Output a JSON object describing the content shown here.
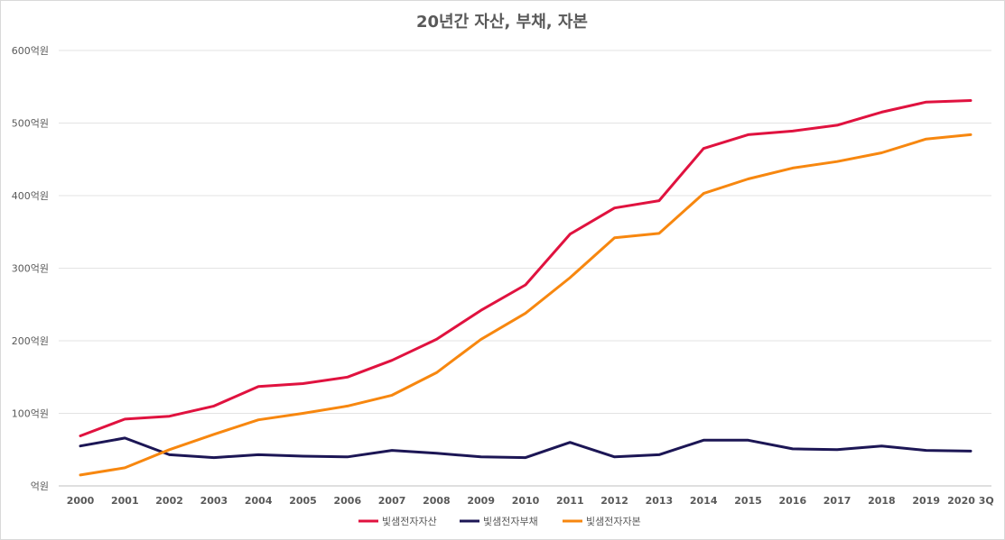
{
  "chart_data": {
    "type": "line",
    "title": "20년간 자산, 부채, 자본",
    "categories": [
      "2000",
      "2001",
      "2002",
      "2003",
      "2004",
      "2005",
      "2006",
      "2007",
      "2008",
      "2009",
      "2010",
      "2011",
      "2012",
      "2013",
      "2014",
      "2015",
      "2016",
      "2017",
      "2018",
      "2019",
      "2020 3Q"
    ],
    "y_ticks": [
      "억원",
      "100억원",
      "200억원",
      "300억원",
      "400억원",
      "500억원",
      "600억원"
    ],
    "ylim": [
      0,
      600
    ],
    "grid": true,
    "legend_position": "bottom",
    "series": [
      {
        "name": "빛샘전자자산",
        "color": "#e0123f",
        "values": [
          69,
          92,
          96,
          110,
          137,
          141,
          150,
          173,
          202,
          242,
          277,
          347,
          383,
          393,
          465,
          484,
          489,
          497,
          515,
          529,
          531
        ]
      },
      {
        "name": "빛샘전자부채",
        "color": "#1c1655",
        "values": [
          55,
          66,
          43,
          39,
          43,
          41,
          40,
          49,
          45,
          40,
          39,
          60,
          40,
          43,
          63,
          63,
          51,
          50,
          55,
          49,
          48
        ]
      },
      {
        "name": "빛샘전자자본",
        "color": "#f7870f",
        "values": [
          15,
          25,
          50,
          71,
          91,
          100,
          110,
          125,
          156,
          202,
          238,
          287,
          342,
          348,
          403,
          423,
          438,
          447,
          459,
          478,
          484
        ]
      }
    ]
  }
}
